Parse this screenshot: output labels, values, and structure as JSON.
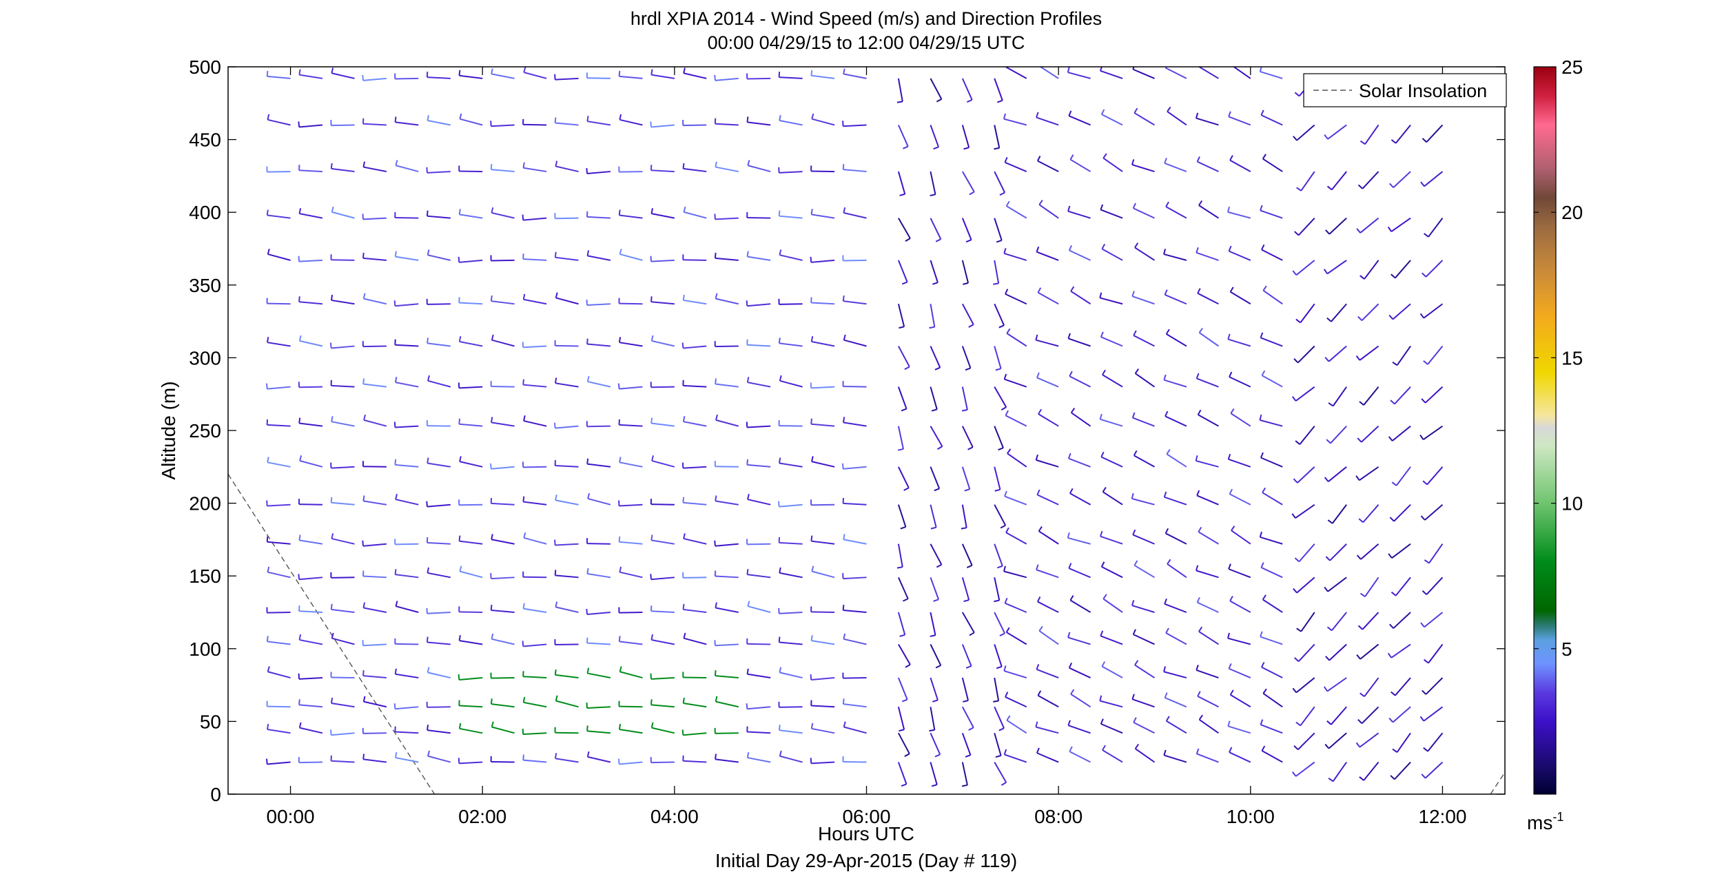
{
  "chart_data": {
    "type": "wind barb profile",
    "title": "hrdl XPIA 2014 - Wind Speed (m/s) and Direction Profiles",
    "subtitle": "00:00 04/29/15 to 12:00 04/29/15  UTC",
    "xlabel": "Hours UTC",
    "xlabel2": "Initial Day 29-Apr-2015 (Day # 119)",
    "ylabel": "Altitude (m)",
    "xlim": [
      -0.65,
      12.65
    ],
    "ylim": [
      0,
      500
    ],
    "x_ticks": [
      0,
      2,
      4,
      6,
      8,
      10,
      12
    ],
    "x_tick_labels": [
      "00:00",
      "02:00",
      "04:00",
      "06:00",
      "08:00",
      "10:00",
      "12:00"
    ],
    "y_ticks": [
      0,
      50,
      100,
      150,
      200,
      250,
      300,
      350,
      400,
      450,
      500
    ],
    "y_tick_labels": [
      "0",
      "50",
      "100",
      "150",
      "200",
      "250",
      "300",
      "350",
      "400",
      "450",
      "500"
    ],
    "legend": {
      "label": "Solar Insolation",
      "placement": "top-right"
    },
    "solar_insolation_line": {
      "x": [
        -0.65,
        1.5
      ],
      "y": [
        220,
        0
      ],
      "x2": [
        12.5,
        12.65
      ],
      "y2": [
        0,
        15
      ]
    },
    "colorbar": {
      "label": "ms",
      "label_exponent": "-1",
      "range": [
        0,
        25
      ],
      "ticks": [
        5,
        10,
        15,
        20,
        25
      ],
      "tick_labels": [
        "5",
        "10",
        "15",
        "20",
        "25"
      ],
      "stops": [
        {
          "v": 0,
          "c": "#000033"
        },
        {
          "v": 1,
          "c": "#1a0a6e"
        },
        {
          "v": 2.5,
          "c": "#3d10c8"
        },
        {
          "v": 3.5,
          "c": "#5a3ae0"
        },
        {
          "v": 4.5,
          "c": "#6f94ff"
        },
        {
          "v": 5.3,
          "c": "#5aa0e0"
        },
        {
          "v": 5.8,
          "c": "#2a7a70"
        },
        {
          "v": 6.3,
          "c": "#006600"
        },
        {
          "v": 8,
          "c": "#008c1a"
        },
        {
          "v": 10,
          "c": "#6fc46f"
        },
        {
          "v": 12,
          "c": "#cfe8c4"
        },
        {
          "v": 12.6,
          "c": "#d8d8d8"
        },
        {
          "v": 13,
          "c": "#f5e6a0"
        },
        {
          "v": 14.5,
          "c": "#f0d700"
        },
        {
          "v": 16.5,
          "c": "#f2a81e"
        },
        {
          "v": 18,
          "c": "#c98a3a"
        },
        {
          "v": 19.5,
          "c": "#9b6a40"
        },
        {
          "v": 20.5,
          "c": "#704838"
        },
        {
          "v": 21.5,
          "c": "#b06070"
        },
        {
          "v": 23,
          "c": "#ff6a90"
        },
        {
          "v": 24,
          "c": "#d02040"
        },
        {
          "v": 25,
          "c": "#9a0010"
        }
      ]
    },
    "altitudes_m": [
      22,
      42,
      60,
      80,
      103,
      125,
      149,
      172,
      199,
      225,
      253,
      280,
      308,
      337,
      367,
      396,
      428,
      460,
      492
    ],
    "time_columns_h": [
      0,
      0.333,
      0.667,
      1,
      1.333,
      1.667,
      2,
      2.333,
      2.667,
      3,
      3.333,
      3.667,
      4,
      4.333,
      4.667,
      5,
      5.333,
      5.667,
      6,
      6.333,
      6.667,
      7,
      7.333,
      7.667,
      8,
      8.333,
      8.667,
      9,
      9.333,
      9.667,
      10,
      10.333,
      10.667,
      11,
      11.333,
      11.667,
      12
    ],
    "column_regimes": [
      {
        "from_h": 0,
        "to_h": 6.2,
        "direction_from_deg": 275,
        "speed_ms": 3.5
      },
      {
        "from_h": 6.2,
        "to_h": 7.4,
        "direction_from_deg": 160,
        "speed_ms": 2.5
      },
      {
        "from_h": 7.4,
        "to_h": 10.4,
        "direction_from_deg": 295,
        "speed_ms": 3.0
      },
      {
        "from_h": 10.4,
        "to_h": 12,
        "direction_from_deg": 225,
        "speed_ms": 2.5
      }
    ],
    "low_level_jet": {
      "altitudes_m": [
        42,
        60,
        80
      ],
      "from_h": 2,
      "to_h": 4.7,
      "speed_ms": 8
    }
  }
}
